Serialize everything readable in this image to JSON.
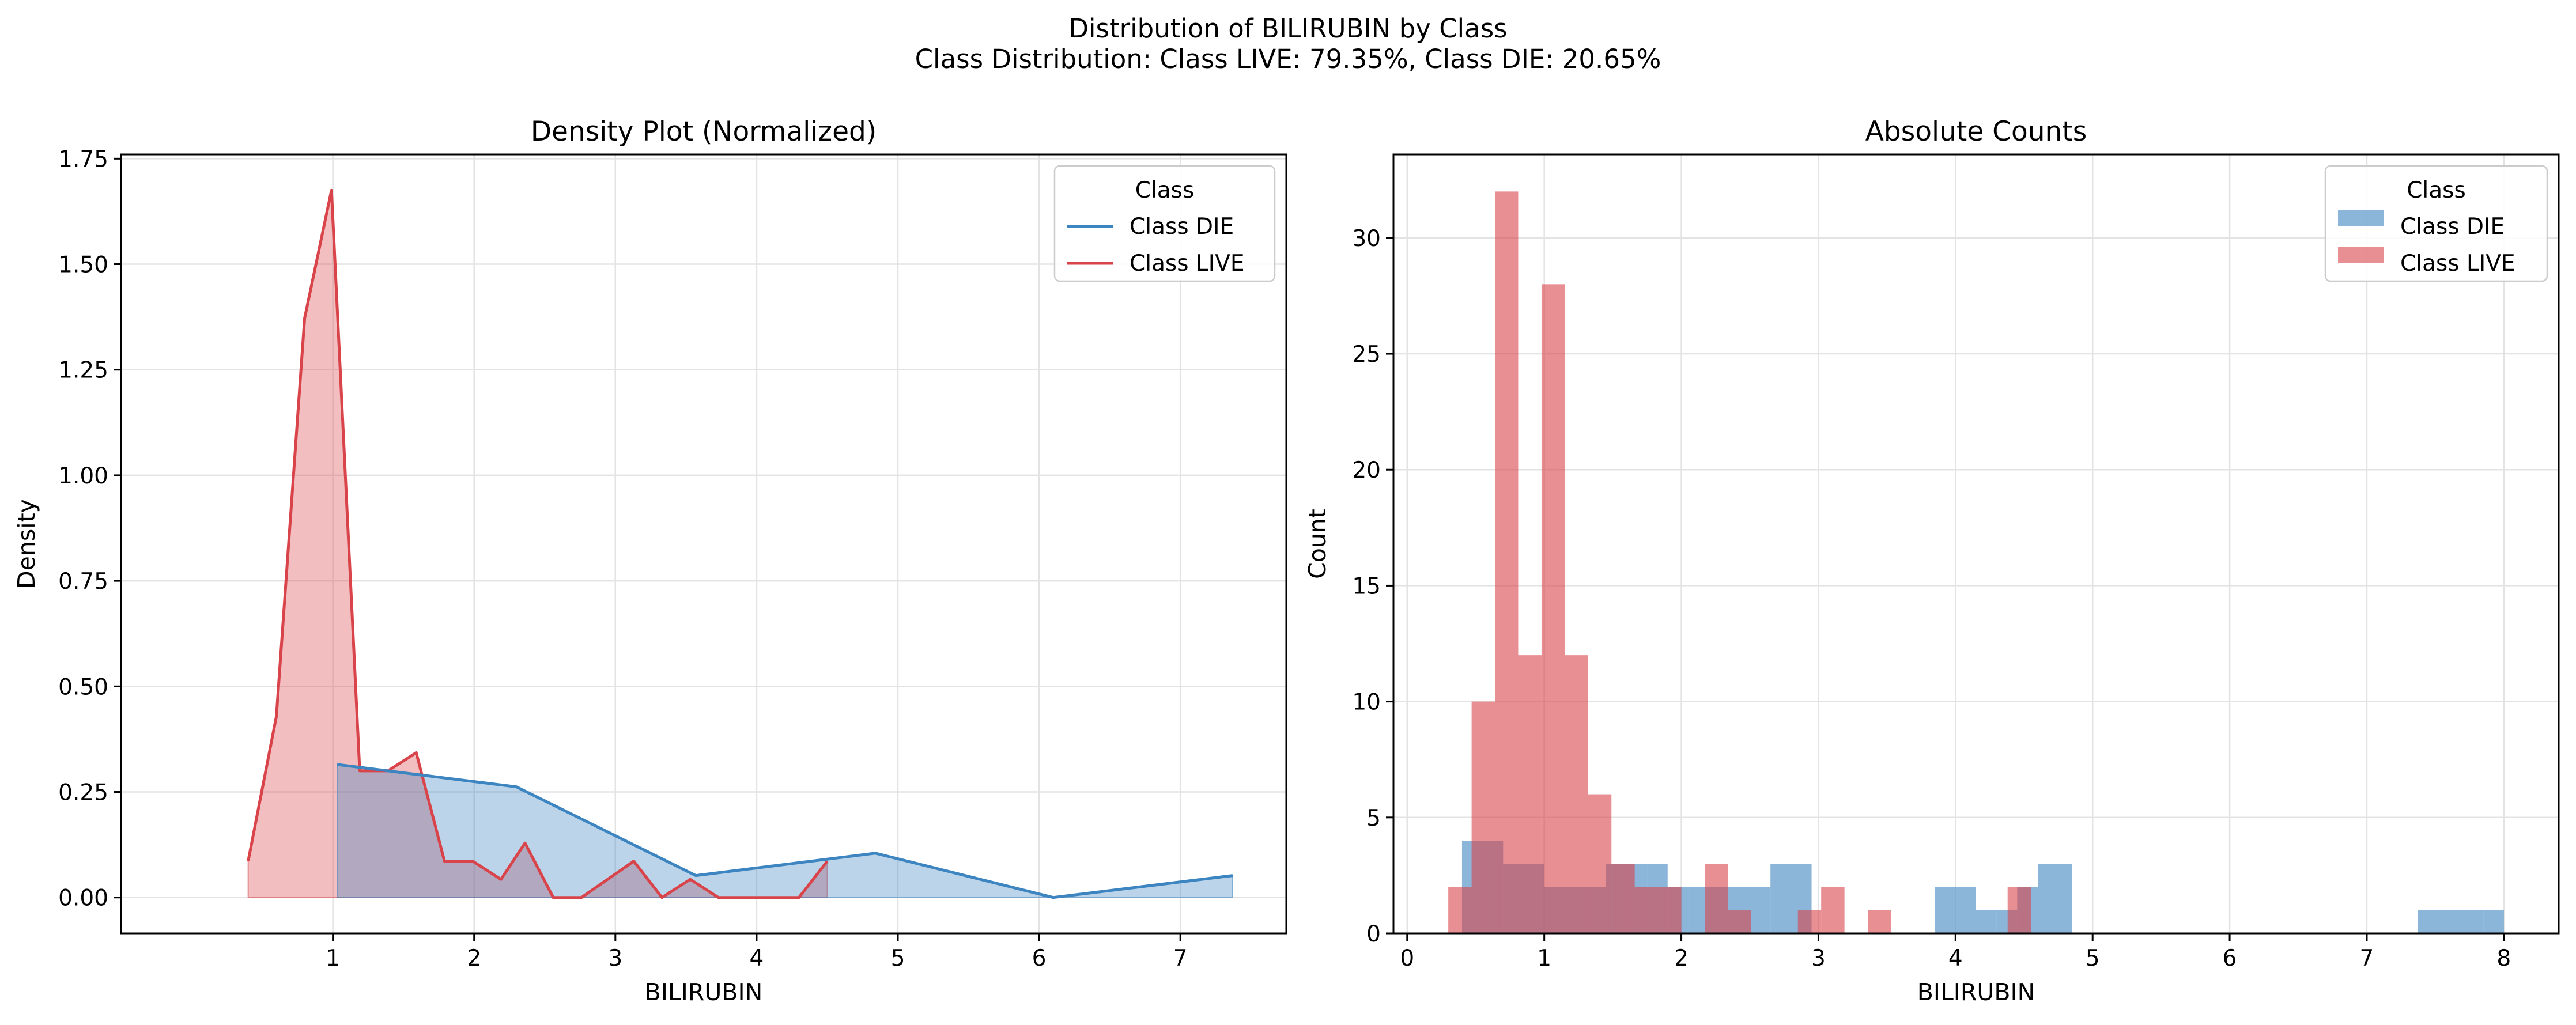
{
  "figure": {
    "title_line1": "Distribution of BILIRUBIN by Class",
    "title_line2": "Class Distribution: Class LIVE: 79.35%, Class DIE: 20.65%"
  },
  "colors": {
    "die": "#3d85c1",
    "live": "#d9444b"
  },
  "chart_data": [
    {
      "type": "area",
      "title": "Density Plot (Normalized)",
      "xlabel": "BILIRUBIN",
      "ylabel": "Density",
      "xlim": [
        -0.5,
        7.75
      ],
      "ylim": [
        -0.085,
        1.76
      ],
      "xticks": [
        1,
        2,
        3,
        4,
        5,
        6,
        7
      ],
      "yticks": [
        0.0,
        0.25,
        0.5,
        0.75,
        1.0,
        1.25,
        1.5,
        1.75
      ],
      "ytick_labels": [
        "0.00",
        "0.25",
        "0.50",
        "0.75",
        "1.00",
        "1.25",
        "1.50",
        "1.75"
      ],
      "grid": true,
      "legend": {
        "title": "Class",
        "placement": "top-right",
        "entries": [
          "Class DIE",
          "Class LIVE"
        ]
      },
      "series": [
        {
          "name": "Class DIE",
          "x": [
            1.03,
            2.3,
            3.57,
            4.84,
            6.1,
            7.37
          ],
          "y": [
            0.315,
            0.262,
            0.052,
            0.105,
            0.0,
            0.052
          ]
        },
        {
          "name": "Class LIVE",
          "x": [
            0.4,
            0.6,
            0.8,
            0.99,
            1.19,
            1.39,
            1.59,
            1.79,
            1.99,
            2.19,
            2.36,
            2.56,
            2.76,
            3.13,
            3.33,
            3.53,
            3.73,
            4.1,
            4.3,
            4.5
          ],
          "y": [
            0.086,
            0.429,
            1.372,
            1.675,
            0.3,
            0.3,
            0.343,
            0.086,
            0.086,
            0.043,
            0.129,
            0.0,
            0.0,
            0.086,
            0.0,
            0.043,
            0.0,
            0.0,
            0.0,
            0.086
          ]
        }
      ]
    },
    {
      "type": "bar",
      "title": "Absolute Counts",
      "xlabel": "BILIRUBIN",
      "ylabel": "Count",
      "xlim": [
        -0.1,
        8.4
      ],
      "ylim": [
        0,
        33.6
      ],
      "xticks": [
        0,
        1,
        2,
        3,
        4,
        5,
        6,
        7,
        8
      ],
      "yticks": [
        0,
        5,
        10,
        15,
        20,
        25,
        30
      ],
      "grid": true,
      "legend": {
        "title": "Class",
        "placement": "top-right",
        "entries": [
          "Class DIE",
          "Class LIVE"
        ]
      },
      "series": [
        {
          "name": "Class DIE",
          "bins": [
            [
              0.4,
              0.55,
              4
            ],
            [
              0.55,
              0.7,
              4
            ],
            [
              0.7,
              0.85,
              3
            ],
            [
              0.85,
              1.0,
              3
            ],
            [
              1.0,
              1.15,
              2
            ],
            [
              1.15,
              1.3,
              2
            ],
            [
              1.3,
              1.45,
              2
            ],
            [
              1.45,
              1.6,
              3
            ],
            [
              1.6,
              1.75,
              3
            ],
            [
              1.75,
              1.9,
              3
            ],
            [
              1.9,
              2.05,
              2
            ],
            [
              2.05,
              2.2,
              2
            ],
            [
              2.2,
              2.35,
              2
            ],
            [
              2.35,
              2.5,
              2
            ],
            [
              2.5,
              2.65,
              2
            ],
            [
              2.65,
              2.8,
              3
            ],
            [
              2.8,
              2.95,
              3
            ],
            [
              3.85,
              4.0,
              2
            ],
            [
              4.0,
              4.15,
              2
            ],
            [
              4.15,
              4.3,
              1
            ],
            [
              4.3,
              4.45,
              1
            ],
            [
              4.45,
              4.6,
              2
            ],
            [
              4.6,
              4.75,
              3
            ],
            [
              4.75,
              4.85,
              3
            ],
            [
              7.37,
              7.55,
              1
            ],
            [
              7.55,
              7.7,
              1
            ],
            [
              7.7,
              7.85,
              1
            ],
            [
              7.85,
              8.0,
              1
            ]
          ]
        },
        {
          "name": "Class LIVE",
          "bins": [
            [
              0.3,
              0.47,
              2
            ],
            [
              0.47,
              0.64,
              10
            ],
            [
              0.64,
              0.81,
              32
            ],
            [
              0.81,
              0.98,
              12
            ],
            [
              0.98,
              1.15,
              28
            ],
            [
              1.15,
              1.32,
              12
            ],
            [
              1.32,
              1.49,
              6
            ],
            [
              1.49,
              1.66,
              3
            ],
            [
              1.66,
              1.83,
              2
            ],
            [
              1.83,
              2.0,
              2
            ],
            [
              2.17,
              2.34,
              3
            ],
            [
              2.34,
              2.51,
              1
            ],
            [
              2.85,
              3.02,
              1
            ],
            [
              3.02,
              3.19,
              2
            ],
            [
              3.36,
              3.53,
              1
            ],
            [
              4.38,
              4.55,
              2
            ]
          ]
        }
      ]
    }
  ]
}
